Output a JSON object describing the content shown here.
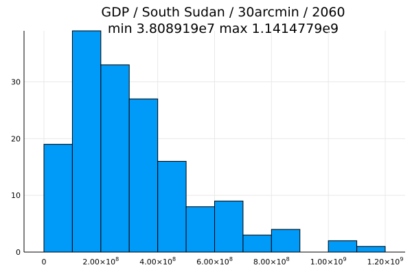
{
  "chart_data": {
    "type": "bar",
    "title_line1": "GDP / South Sudan / 30arcmin / 2060",
    "title_line2": "min 3.808919e7  max 1.1414779e9",
    "xlabel": "",
    "ylabel": "",
    "bar_color": "#009af9",
    "bins": [
      {
        "x0": 0,
        "x1": 100000000,
        "count": 19
      },
      {
        "x0": 100000000,
        "x1": 200000000,
        "count": 39
      },
      {
        "x0": 200000000,
        "x1": 300000000,
        "count": 33
      },
      {
        "x0": 300000000,
        "x1": 400000000,
        "count": 27
      },
      {
        "x0": 400000000,
        "x1": 500000000,
        "count": 16
      },
      {
        "x0": 500000000,
        "x1": 600000000,
        "count": 8
      },
      {
        "x0": 600000000,
        "x1": 700000000,
        "count": 9
      },
      {
        "x0": 700000000,
        "x1": 800000000,
        "count": 3
      },
      {
        "x0": 800000000,
        "x1": 900000000,
        "count": 4
      },
      {
        "x0": 900000000,
        "x1": 1000000000,
        "count": 0
      },
      {
        "x0": 1000000000,
        "x1": 1100000000,
        "count": 2
      },
      {
        "x0": 1100000000,
        "x1": 1200000000,
        "count": 1
      }
    ],
    "xlim": [
      -70000000,
      1270000000
    ],
    "ylim": [
      0,
      39
    ],
    "xticks": [
      {
        "value": 0,
        "mant": "0",
        "exp": ""
      },
      {
        "value": 200000000,
        "mant": "2.00×10",
        "exp": "8"
      },
      {
        "value": 400000000,
        "mant": "4.00×10",
        "exp": "8"
      },
      {
        "value": 600000000,
        "mant": "6.00×10",
        "exp": "8"
      },
      {
        "value": 800000000,
        "mant": "8.00×10",
        "exp": "8"
      },
      {
        "value": 1000000000,
        "mant": "1.00×10",
        "exp": "9"
      },
      {
        "value": 1200000000,
        "mant": "1.20×10",
        "exp": "9"
      }
    ],
    "yticks": [
      {
        "value": 0,
        "label": "0"
      },
      {
        "value": 10,
        "label": "10"
      },
      {
        "value": 20,
        "label": "20"
      },
      {
        "value": 30,
        "label": "30"
      }
    ],
    "grid": true,
    "legend": "none"
  }
}
